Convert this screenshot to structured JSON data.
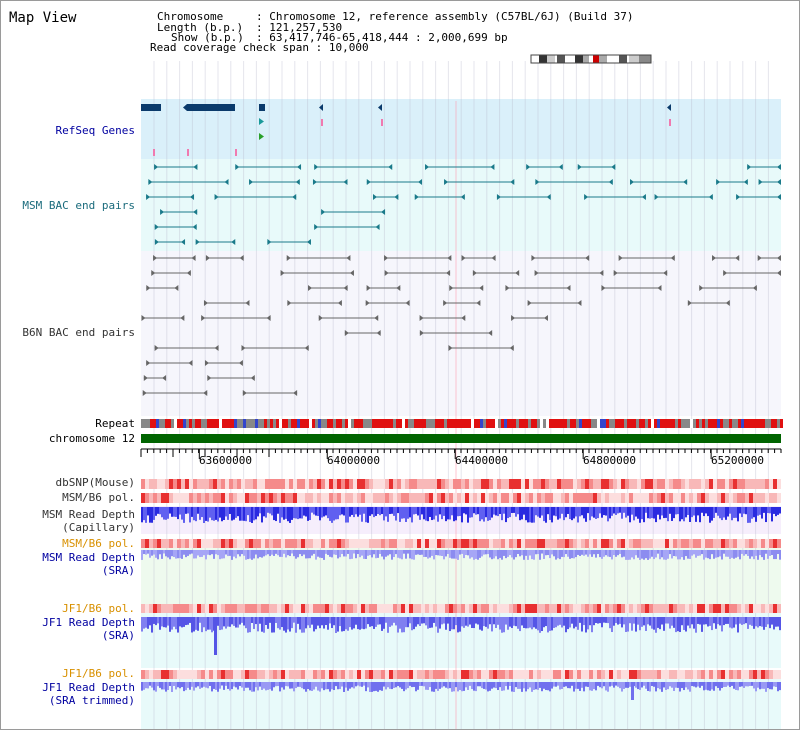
{
  "title": "Map View",
  "info": {
    "chromosome_label": "Chromosome",
    "chromosome_value": "Chromosome 12, reference assembly (C57BL/6J) (Build 37)",
    "length_label": "Length (b.p.)",
    "length_value": "121,257,530",
    "show_label": "Show (b.p.)",
    "show_value": "63,417,746-65,418,444 : 2,000,699 bp",
    "coverage_label": "Read coverage check span",
    "coverage_value": "10,000"
  },
  "tracks": {
    "refseq": "RefSeq Genes",
    "msm_bac": "MSM BAC end pairs",
    "b6n_bac": "B6N BAC end pairs",
    "repeat": "Repeat",
    "chromosome": "chromosome 12",
    "dbsnp": "dbSNP(Mouse)",
    "msm_b6_pol_1": "MSM/B6 pol.",
    "msm_depth_cap_1": "MSM Read Depth",
    "msm_depth_cap_2": "(Capillary)",
    "msm_b6_pol_2": "MSM/B6 pol.",
    "msm_depth_sra_1": "MSM Read Depth",
    "msm_depth_sra_2": "(SRA)",
    "jf1_b6_pol_1": "JF1/B6 pol.",
    "jf1_depth_sra_1": "JF1 Read Depth",
    "jf1_depth_sra_2": "(SRA)",
    "jf1_b6_pol_2": "JF1/B6 pol.",
    "jf1_depth_trim_1": "JF1 Read Depth",
    "jf1_depth_trim_2": "(SRA trimmed)"
  },
  "axis": {
    "ticks": [
      "63600000",
      "64000000",
      "64400000",
      "64800000",
      "65200000"
    ],
    "tick_values": [
      63600000,
      64000000,
      64400000,
      64800000,
      65200000
    ],
    "range": [
      63417746,
      65418444
    ]
  },
  "colors": {
    "refseq_bg": "#daf0fa",
    "bac_bg": "#e8fafa",
    "gene": "#0a3a6b",
    "msm_pair": "#1a7a8a",
    "b6n_pair": "#666666",
    "chromosome": "#006400",
    "depth_blue": "#3333dd",
    "depth_light": "#8888ee"
  }
}
